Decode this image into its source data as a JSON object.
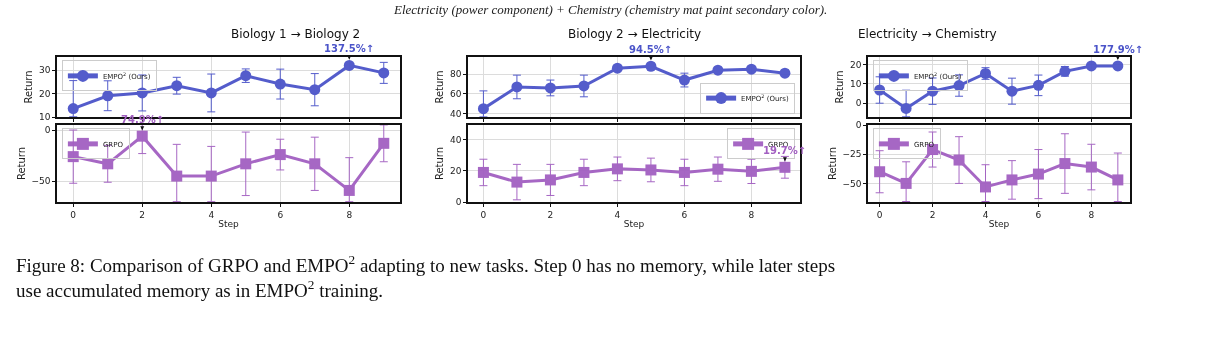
{
  "chart_data": [
    {
      "type": "line",
      "title": "Biology 1 → Biology 2",
      "ylabel": "Return",
      "x": [
        0,
        1,
        2,
        3,
        4,
        5,
        6,
        7,
        8,
        9
      ],
      "xlim": [
        -0.47,
        9.47
      ],
      "xticks": [
        0,
        2,
        4,
        6,
        8
      ],
      "ylim": [
        10,
        35.7
      ],
      "yticks": [
        10,
        20,
        30
      ],
      "grid": true,
      "legend": "top left",
      "tick_labels": "y",
      "marker": "circle",
      "annotations": [
        "Electricity (power component) + Chemistry (chemistry mat paint secondary color).",
        {
          "text": "137.5%↑",
          "x": 8,
          "y": 32.1
        }
      ],
      "series": [
        {
          "name": "EMPO$^{2}$ (Ours)",
          "color": "#4b54c9",
          "values": [
            13.6,
            19.1,
            20.3,
            23.4,
            20.3,
            27.7,
            24.1,
            21.7,
            32.1,
            28.9
          ],
          "errors": [
            [
              10.1,
              25.6
            ],
            6.4,
            7.7,
            3.6,
            8.1,
            2.9,
            6.4,
            6.9,
            null,
            4.5
          ]
        }
      ]
    },
    {
      "type": "line",
      "xlabel": "Step",
      "ylabel": "Return",
      "x": [
        0,
        1,
        2,
        3,
        4,
        5,
        6,
        7,
        8,
        9
      ],
      "xlim": [
        -0.47,
        9.47
      ],
      "xticks": [
        0,
        2,
        4,
        6,
        8
      ],
      "ylim": [
        -70.3,
        4.9
      ],
      "yticks": [
        -50,
        0
      ],
      "grid": true,
      "legend": "top left",
      "marker": "square",
      "annotations": [
        {
          "text": "74.9%↑",
          "x": 2,
          "y": -6
        }
      ],
      "series": [
        {
          "name": "GRPO",
          "color": "#a25fc1",
          "values": [
            -26,
            -33,
            -6,
            -45,
            -45,
            -33,
            -24,
            -33,
            -59,
            -13
          ],
          "errors": [
            26,
            18,
            17,
            [
              -70,
              -14
            ],
            [
              -70,
              -16
            ],
            31,
            15,
            26,
            [
              -70,
              -27
            ],
            18
          ]
        }
      ]
    },
    {
      "type": "line",
      "title": "Biology 2 → Electricity",
      "ylabel": "Return",
      "x": [
        0,
        1,
        2,
        3,
        4,
        5,
        6,
        7,
        8,
        9
      ],
      "xlim": [
        -0.46,
        9.45
      ],
      "xticks": [
        0,
        2,
        4,
        6,
        8
      ],
      "ylim": [
        36.5,
        97.4
      ],
      "yticks": [
        40,
        60,
        80
      ],
      "grid": true,
      "legend": "bottom right",
      "tick_labels": "y",
      "marker": "circle",
      "annotations": [
        {
          "text": "94.5%↑",
          "x": 5,
          "y": 88
        }
      ],
      "series": [
        {
          "name": "EMPO$^{2}$ (Ours)",
          "color": "#4b54c9",
          "values": [
            45,
            67,
            66,
            68,
            86,
            88,
            74,
            84,
            85,
            81
          ],
          "errors": [
            [
              36.6,
              63
            ],
            12,
            8,
            11,
            null,
            null,
            7,
            null,
            null,
            3
          ]
        }
      ]
    },
    {
      "type": "line",
      "xlabel": "Step",
      "ylabel": "Return",
      "x": [
        0,
        1,
        2,
        3,
        4,
        5,
        6,
        7,
        8,
        9
      ],
      "xlim": [
        -0.46,
        9.45
      ],
      "xticks": [
        0,
        2,
        4,
        6,
        8
      ],
      "ylim": [
        0,
        49.5
      ],
      "yticks": [
        0,
        20,
        40
      ],
      "grid": true,
      "legend": "top right",
      "marker": "square",
      "annotations": [
        {
          "text": "19.7%↑",
          "x": 9,
          "y": 22.3
        }
      ],
      "series": [
        {
          "name": "GRPO",
          "color": "#a25fc1",
          "values": [
            19,
            12.8,
            14.2,
            19,
            21.3,
            20.6,
            19,
            21.1,
            19.7,
            22.3
          ],
          "errors": [
            8.5,
            11.4,
            10,
            8.5,
            7.6,
            7.6,
            8.5,
            7.8,
            7.8,
            7
          ]
        }
      ]
    },
    {
      "type": "line",
      "title": "Electricity → Chemistry",
      "ylabel": "Return",
      "x": [
        0,
        1,
        2,
        3,
        4,
        5,
        6,
        7,
        8,
        9
      ],
      "xlim": [
        -0.44,
        9.46
      ],
      "xticks": [
        0,
        2,
        4,
        6,
        8
      ],
      "ylim": [
        -7.1,
        23.8
      ],
      "yticks": [
        0,
        10,
        20
      ],
      "grid": true,
      "legend": "top left",
      "tick_labels": "y",
      "marker": "circle",
      "annotations": [
        {
          "text": "177.9%↑",
          "x": 9,
          "y": 19.2
        }
      ],
      "series": [
        {
          "name": "EMPO$^{2}$ (Ours)",
          "color": "#4b54c9",
          "values": [
            6.8,
            -2.7,
            6.2,
            9.1,
            15.3,
            6.2,
            9.2,
            16.4,
            19.2,
            19.2
          ],
          "errors": [
            6.8,
            [
              -7,
              6.7
            ],
            6.8,
            5.5,
            3,
            6.7,
            5.3,
            2.5,
            null,
            null
          ]
        }
      ]
    },
    {
      "type": "line",
      "xlabel": "Step",
      "ylabel": "Return",
      "x": [
        0,
        1,
        2,
        3,
        4,
        5,
        6,
        7,
        8,
        9
      ],
      "xlim": [
        -0.44,
        9.46
      ],
      "xticks": [
        0,
        2,
        4,
        6,
        8
      ],
      "ylim": [
        -65.9,
        0
      ],
      "yticks": [
        -50,
        -25,
        0
      ],
      "grid": true,
      "legend": "top left",
      "marker": "square",
      "annotations": [
        {
          "text": "Figure 8: Comparison of GRPO and EMPO$^{2}$ adapting to new tasks. Step 0 has no memory, while later steps use accumulated memory as in EMPO$^{2}$ training."
        }
      ],
      "series": [
        {
          "name": "GRPO",
          "color": "#a25fc1",
          "values": [
            -40,
            -50,
            -21,
            -30,
            -53,
            -47,
            -42,
            -33,
            -36,
            -47
          ],
          "errors": [
            18,
            [
              -65.5,
              -31.5
            ],
            15,
            20,
            [
              -65.5,
              -34
            ],
            16.5,
            21,
            25.5,
            19.5,
            [
              -65.5,
              -24
            ]
          ]
        }
      ]
    }
  ]
}
